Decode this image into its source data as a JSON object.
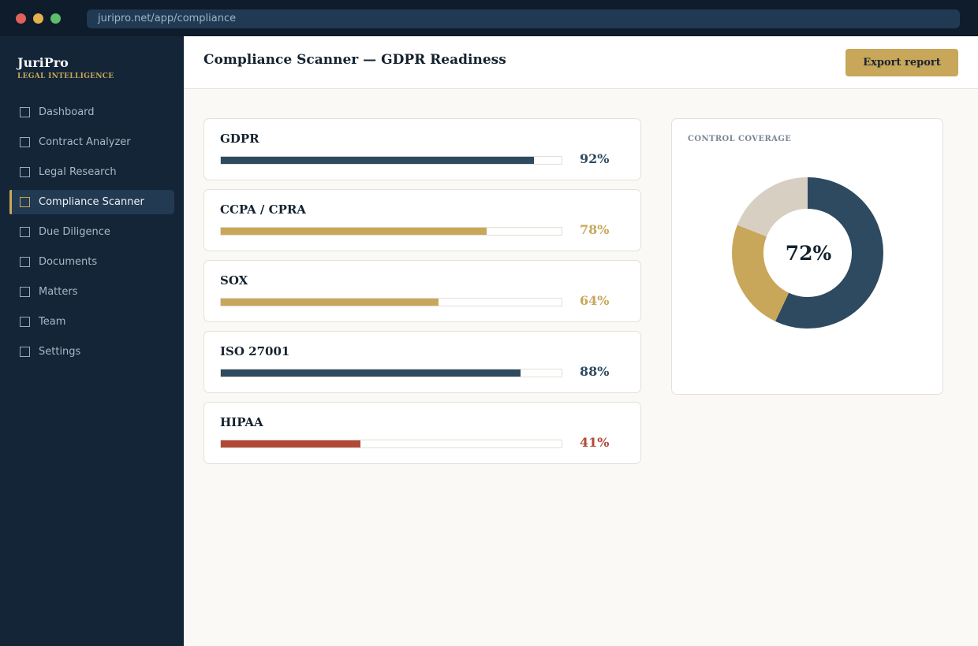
{
  "browser": {
    "url": "juripro.net/app/compliance"
  },
  "sidebar": {
    "brand": "JuriPro",
    "tagline": "LEGAL INTELLIGENCE",
    "items": [
      {
        "label": "Dashboard",
        "active": false
      },
      {
        "label": "Contract Analyzer",
        "active": false
      },
      {
        "label": "Legal Research",
        "active": false
      },
      {
        "label": "Compliance Scanner",
        "active": true
      },
      {
        "label": "Due Diligence",
        "active": false
      },
      {
        "label": "Documents",
        "active": false
      },
      {
        "label": "Matters",
        "active": false
      },
      {
        "label": "Team",
        "active": false
      },
      {
        "label": "Settings",
        "active": false
      }
    ]
  },
  "header": {
    "title": "Compliance Scanner — GDPR Readiness",
    "export_label": "Export report"
  },
  "frameworks": [
    {
      "name": "GDPR",
      "percent": 92,
      "percent_label": "92%",
      "color": "#2e4a60"
    },
    {
      "name": "CCPA / CPRA",
      "percent": 78,
      "percent_label": "78%",
      "color": "#c8a75a"
    },
    {
      "name": "SOX",
      "percent": 64,
      "percent_label": "64%",
      "color": "#c8a75a"
    },
    {
      "name": "ISO 27001",
      "percent": 88,
      "percent_label": "88%",
      "color": "#2e4a60"
    },
    {
      "name": "HIPAA",
      "percent": 41,
      "percent_label": "41%",
      "color": "#b04a36"
    }
  ],
  "coverage": {
    "title": "CONTROL COVERAGE",
    "center_label": "72%",
    "segments": [
      {
        "value": 57,
        "color": "#2e4a60"
      },
      {
        "value": 24,
        "color": "#c8a75a"
      },
      {
        "value": 19,
        "color": "#d7d0c2"
      }
    ]
  },
  "colors": {
    "accent_gold": "#c8a75a",
    "navy": "#2e4a60",
    "danger": "#b04a36",
    "sidebar_bg": "#142537"
  }
}
